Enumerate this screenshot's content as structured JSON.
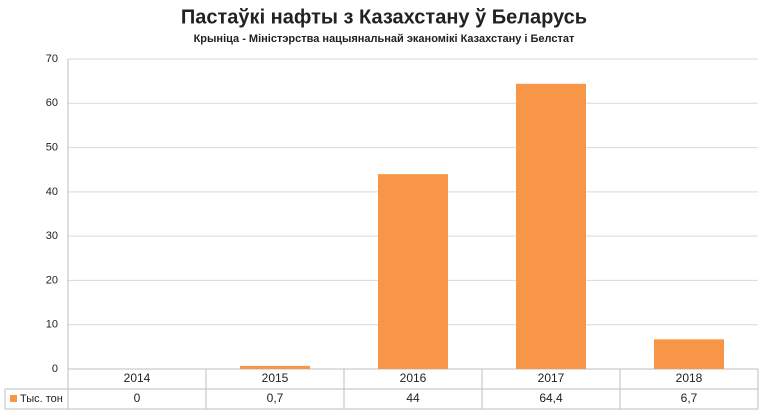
{
  "chart_data": {
    "type": "bar",
    "title": "Пастаўкі нафты з Казахстану ў Беларусь",
    "subtitle": "Крыніца - Міністэрства нацыянальнай эканомікі Казахстану і Белстат",
    "categories": [
      "2014",
      "2015",
      "2016",
      "2017",
      "2018"
    ],
    "series": [
      {
        "name": "Тыс. тон",
        "color": "#f79646",
        "values": [
          0,
          0.7,
          44,
          64.4,
          6.7
        ],
        "value_labels": [
          "0",
          "0,7",
          "44",
          "64,4",
          "6,7"
        ]
      }
    ],
    "ylim": [
      0,
      70
    ],
    "yticks": [
      0,
      10,
      20,
      30,
      40,
      50,
      60,
      70
    ],
    "grid": true
  }
}
